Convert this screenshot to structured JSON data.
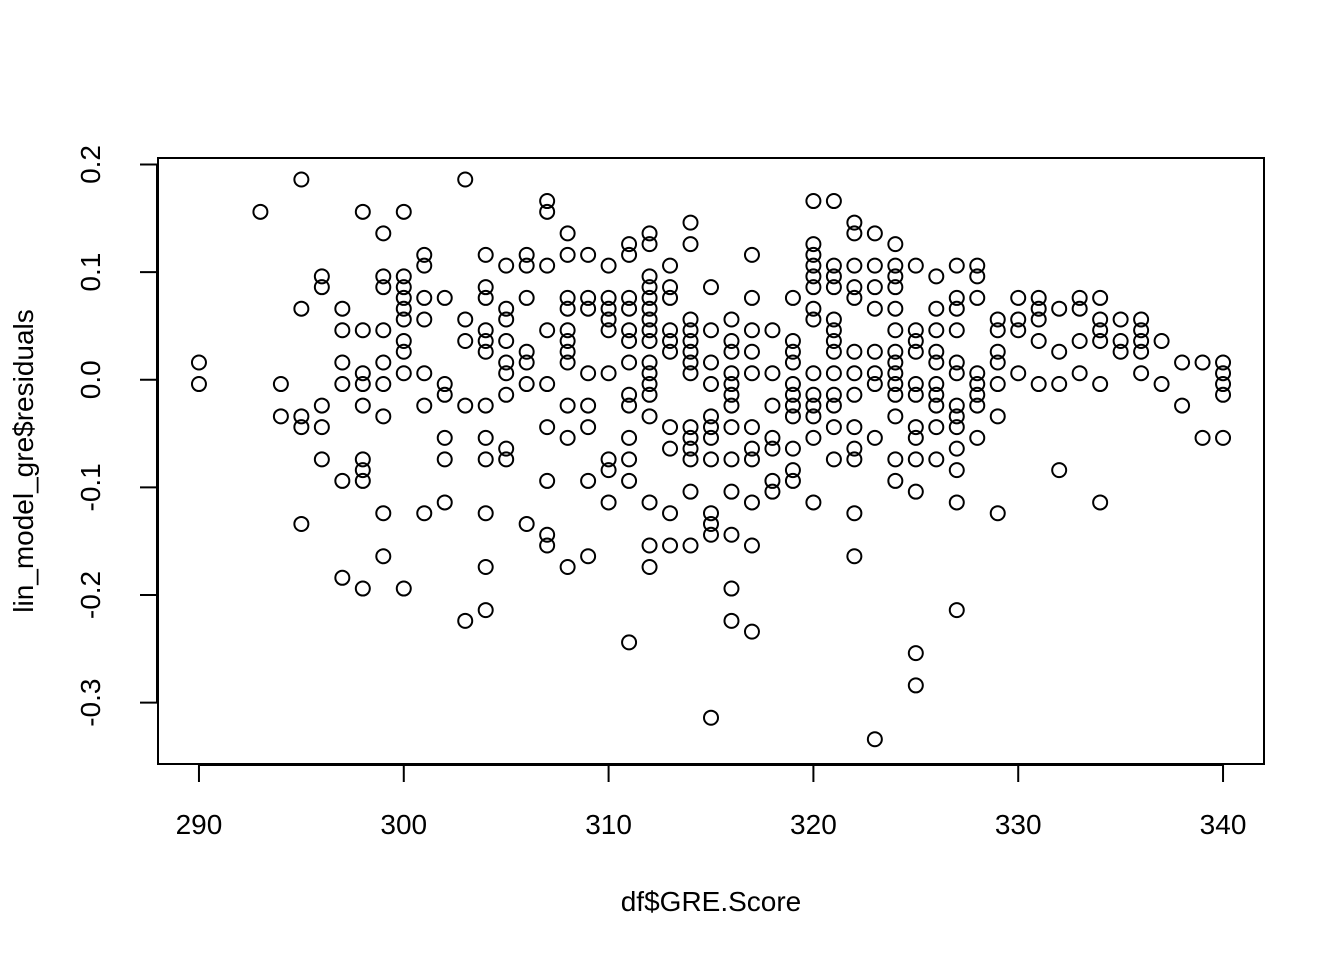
{
  "chart_data": {
    "type": "scatter",
    "xlabel": "df$GRE.Score",
    "ylabel": "lin_model_gre$residuals",
    "xlim": [
      288,
      342
    ],
    "ylim": [
      -0.357,
      0.206
    ],
    "xticks": [
      "290",
      "300",
      "310",
      "320",
      "330",
      "340"
    ],
    "yticks": [
      "-0.3",
      "-0.2",
      "-0.1",
      "0.0",
      "0.1",
      "0.2"
    ],
    "grid": false,
    "marker": "open-circle",
    "color": "#000000",
    "points": [
      [
        290,
        0.016
      ],
      [
        290,
        -0.004
      ],
      [
        293,
        0.156
      ],
      [
        294,
        -0.004
      ],
      [
        294,
        -0.034
      ],
      [
        295,
        0.186
      ],
      [
        295,
        0.066
      ],
      [
        295,
        -0.034
      ],
      [
        295,
        -0.044
      ],
      [
        295,
        -0.134
      ],
      [
        296,
        0.096
      ],
      [
        296,
        0.086
      ],
      [
        296,
        -0.024
      ],
      [
        296,
        -0.044
      ],
      [
        296,
        -0.074
      ],
      [
        297,
        0.066
      ],
      [
        297,
        0.046
      ],
      [
        297,
        0.016
      ],
      [
        297,
        -0.004
      ],
      [
        297,
        -0.094
      ],
      [
        297,
        -0.184
      ],
      [
        298,
        0.156
      ],
      [
        298,
        0.046
      ],
      [
        298,
        0.006
      ],
      [
        298,
        -0.004
      ],
      [
        298,
        -0.024
      ],
      [
        298,
        -0.074
      ],
      [
        298,
        -0.084
      ],
      [
        298,
        -0.094
      ],
      [
        298,
        -0.194
      ],
      [
        299,
        0.136
      ],
      [
        299,
        0.096
      ],
      [
        299,
        0.086
      ],
      [
        299,
        0.046
      ],
      [
        299,
        0.016
      ],
      [
        299,
        -0.004
      ],
      [
        299,
        -0.034
      ],
      [
        299,
        -0.124
      ],
      [
        299,
        -0.164
      ],
      [
        300,
        0.156
      ],
      [
        300,
        0.096
      ],
      [
        300,
        0.086
      ],
      [
        300,
        0.076
      ],
      [
        300,
        0.066
      ],
      [
        300,
        0.056
      ],
      [
        300,
        0.036
      ],
      [
        300,
        0.026
      ],
      [
        300,
        0.006
      ],
      [
        300,
        -0.194
      ],
      [
        301,
        0.116
      ],
      [
        301,
        0.106
      ],
      [
        301,
        0.076
      ],
      [
        301,
        0.056
      ],
      [
        301,
        0.006
      ],
      [
        301,
        -0.024
      ],
      [
        301,
        -0.124
      ],
      [
        302,
        0.076
      ],
      [
        302,
        -0.004
      ],
      [
        302,
        -0.014
      ],
      [
        302,
        -0.054
      ],
      [
        302,
        -0.074
      ],
      [
        302,
        -0.114
      ],
      [
        303,
        0.186
      ],
      [
        303,
        0.056
      ],
      [
        303,
        0.036
      ],
      [
        303,
        -0.024
      ],
      [
        303,
        -0.224
      ],
      [
        304,
        0.116
      ],
      [
        304,
        0.086
      ],
      [
        304,
        0.076
      ],
      [
        304,
        0.046
      ],
      [
        304,
        0.036
      ],
      [
        304,
        0.026
      ],
      [
        304,
        -0.024
      ],
      [
        304,
        -0.054
      ],
      [
        304,
        -0.074
      ],
      [
        304,
        -0.124
      ],
      [
        304,
        -0.174
      ],
      [
        304,
        -0.214
      ],
      [
        305,
        0.106
      ],
      [
        305,
        0.066
      ],
      [
        305,
        0.056
      ],
      [
        305,
        0.036
      ],
      [
        305,
        0.016
      ],
      [
        305,
        0.006
      ],
      [
        305,
        -0.014
      ],
      [
        305,
        -0.064
      ],
      [
        305,
        -0.074
      ],
      [
        306,
        0.116
      ],
      [
        306,
        0.106
      ],
      [
        306,
        0.076
      ],
      [
        306,
        0.026
      ],
      [
        306,
        0.016
      ],
      [
        306,
        -0.004
      ],
      [
        306,
        -0.134
      ],
      [
        307,
        0.166
      ],
      [
        307,
        0.156
      ],
      [
        307,
        0.106
      ],
      [
        307,
        0.046
      ],
      [
        307,
        -0.004
      ],
      [
        307,
        -0.044
      ],
      [
        307,
        -0.094
      ],
      [
        307,
        -0.144
      ],
      [
        307,
        -0.154
      ],
      [
        308,
        0.136
      ],
      [
        308,
        0.116
      ],
      [
        308,
        0.076
      ],
      [
        308,
        0.066
      ],
      [
        308,
        0.046
      ],
      [
        308,
        0.036
      ],
      [
        308,
        0.026
      ],
      [
        308,
        0.016
      ],
      [
        308,
        -0.024
      ],
      [
        308,
        -0.054
      ],
      [
        308,
        -0.174
      ],
      [
        309,
        0.116
      ],
      [
        309,
        0.076
      ],
      [
        309,
        0.066
      ],
      [
        309,
        0.006
      ],
      [
        309,
        -0.024
      ],
      [
        309,
        -0.044
      ],
      [
        309,
        -0.094
      ],
      [
        309,
        -0.164
      ],
      [
        310,
        0.106
      ],
      [
        310,
        0.076
      ],
      [
        310,
        0.066
      ],
      [
        310,
        0.056
      ],
      [
        310,
        0.046
      ],
      [
        310,
        0.006
      ],
      [
        310,
        -0.074
      ],
      [
        310,
        -0.084
      ],
      [
        310,
        -0.114
      ],
      [
        311,
        0.126
      ],
      [
        311,
        0.116
      ],
      [
        311,
        0.076
      ],
      [
        311,
        0.066
      ],
      [
        311,
        0.046
      ],
      [
        311,
        0.036
      ],
      [
        311,
        0.016
      ],
      [
        311,
        -0.014
      ],
      [
        311,
        -0.024
      ],
      [
        311,
        -0.054
      ],
      [
        311,
        -0.074
      ],
      [
        311,
        -0.094
      ],
      [
        311,
        -0.244
      ],
      [
        312,
        0.136
      ],
      [
        312,
        0.126
      ],
      [
        312,
        0.096
      ],
      [
        312,
        0.086
      ],
      [
        312,
        0.076
      ],
      [
        312,
        0.066
      ],
      [
        312,
        0.056
      ],
      [
        312,
        0.046
      ],
      [
        312,
        0.036
      ],
      [
        312,
        0.016
      ],
      [
        312,
        0.006
      ],
      [
        312,
        -0.004
      ],
      [
        312,
        -0.014
      ],
      [
        312,
        -0.034
      ],
      [
        312,
        -0.114
      ],
      [
        312,
        -0.154
      ],
      [
        312,
        -0.174
      ],
      [
        313,
        0.106
      ],
      [
        313,
        0.086
      ],
      [
        313,
        0.076
      ],
      [
        313,
        0.046
      ],
      [
        313,
        0.036
      ],
      [
        313,
        0.026
      ],
      [
        313,
        -0.044
      ],
      [
        313,
        -0.064
      ],
      [
        313,
        -0.124
      ],
      [
        313,
        -0.154
      ],
      [
        314,
        0.146
      ],
      [
        314,
        0.126
      ],
      [
        314,
        0.056
      ],
      [
        314,
        0.046
      ],
      [
        314,
        0.036
      ],
      [
        314,
        0.026
      ],
      [
        314,
        0.016
      ],
      [
        314,
        0.006
      ],
      [
        314,
        -0.044
      ],
      [
        314,
        -0.054
      ],
      [
        314,
        -0.064
      ],
      [
        314,
        -0.074
      ],
      [
        314,
        -0.104
      ],
      [
        314,
        -0.154
      ],
      [
        315,
        0.086
      ],
      [
        315,
        0.046
      ],
      [
        315,
        0.016
      ],
      [
        315,
        -0.004
      ],
      [
        315,
        -0.034
      ],
      [
        315,
        -0.044
      ],
      [
        315,
        -0.054
      ],
      [
        315,
        -0.074
      ],
      [
        315,
        -0.124
      ],
      [
        315,
        -0.134
      ],
      [
        315,
        -0.144
      ],
      [
        315,
        -0.314
      ],
      [
        316,
        0.056
      ],
      [
        316,
        0.036
      ],
      [
        316,
        0.026
      ],
      [
        316,
        0.006
      ],
      [
        316,
        -0.004
      ],
      [
        316,
        -0.014
      ],
      [
        316,
        -0.024
      ],
      [
        316,
        -0.044
      ],
      [
        316,
        -0.074
      ],
      [
        316,
        -0.104
      ],
      [
        316,
        -0.144
      ],
      [
        316,
        -0.194
      ],
      [
        316,
        -0.224
      ],
      [
        317,
        0.116
      ],
      [
        317,
        0.076
      ],
      [
        317,
        0.046
      ],
      [
        317,
        0.026
      ],
      [
        317,
        0.006
      ],
      [
        317,
        -0.044
      ],
      [
        317,
        -0.064
      ],
      [
        317,
        -0.074
      ],
      [
        317,
        -0.114
      ],
      [
        317,
        -0.154
      ],
      [
        317,
        -0.234
      ],
      [
        318,
        0.046
      ],
      [
        318,
        0.006
      ],
      [
        318,
        -0.024
      ],
      [
        318,
        -0.054
      ],
      [
        318,
        -0.064
      ],
      [
        318,
        -0.094
      ],
      [
        318,
        -0.104
      ],
      [
        319,
        0.076
      ],
      [
        319,
        0.036
      ],
      [
        319,
        0.026
      ],
      [
        319,
        0.016
      ],
      [
        319,
        -0.004
      ],
      [
        319,
        -0.014
      ],
      [
        319,
        -0.024
      ],
      [
        319,
        -0.034
      ],
      [
        319,
        -0.064
      ],
      [
        319,
        -0.084
      ],
      [
        319,
        -0.094
      ],
      [
        320,
        0.166
      ],
      [
        320,
        0.126
      ],
      [
        320,
        0.116
      ],
      [
        320,
        0.106
      ],
      [
        320,
        0.096
      ],
      [
        320,
        0.086
      ],
      [
        320,
        0.066
      ],
      [
        320,
        0.056
      ],
      [
        320,
        0.006
      ],
      [
        320,
        -0.014
      ],
      [
        320,
        -0.024
      ],
      [
        320,
        -0.034
      ],
      [
        320,
        -0.054
      ],
      [
        320,
        -0.114
      ],
      [
        321,
        0.166
      ],
      [
        321,
        0.106
      ],
      [
        321,
        0.096
      ],
      [
        321,
        0.086
      ],
      [
        321,
        0.056
      ],
      [
        321,
        0.046
      ],
      [
        321,
        0.036
      ],
      [
        321,
        0.026
      ],
      [
        321,
        0.006
      ],
      [
        321,
        -0.014
      ],
      [
        321,
        -0.024
      ],
      [
        321,
        -0.044
      ],
      [
        321,
        -0.074
      ],
      [
        322,
        0.146
      ],
      [
        322,
        0.136
      ],
      [
        322,
        0.106
      ],
      [
        322,
        0.086
      ],
      [
        322,
        0.076
      ],
      [
        322,
        0.026
      ],
      [
        322,
        0.006
      ],
      [
        322,
        -0.014
      ],
      [
        322,
        -0.044
      ],
      [
        322,
        -0.064
      ],
      [
        322,
        -0.074
      ],
      [
        322,
        -0.124
      ],
      [
        322,
        -0.164
      ],
      [
        323,
        0.136
      ],
      [
        323,
        0.106
      ],
      [
        323,
        0.086
      ],
      [
        323,
        0.066
      ],
      [
        323,
        0.026
      ],
      [
        323,
        0.006
      ],
      [
        323,
        -0.004
      ],
      [
        323,
        -0.054
      ],
      [
        323,
        -0.334
      ],
      [
        324,
        0.126
      ],
      [
        324,
        0.106
      ],
      [
        324,
        0.096
      ],
      [
        324,
        0.086
      ],
      [
        324,
        0.066
      ],
      [
        324,
        0.046
      ],
      [
        324,
        0.026
      ],
      [
        324,
        0.016
      ],
      [
        324,
        0.006
      ],
      [
        324,
        -0.004
      ],
      [
        324,
        -0.014
      ],
      [
        324,
        -0.034
      ],
      [
        324,
        -0.074
      ],
      [
        324,
        -0.094
      ],
      [
        325,
        0.106
      ],
      [
        325,
        0.046
      ],
      [
        325,
        0.036
      ],
      [
        325,
        0.026
      ],
      [
        325,
        -0.004
      ],
      [
        325,
        -0.014
      ],
      [
        325,
        -0.044
      ],
      [
        325,
        -0.054
      ],
      [
        325,
        -0.074
      ],
      [
        325,
        -0.104
      ],
      [
        325,
        -0.254
      ],
      [
        325,
        -0.284
      ],
      [
        326,
        0.096
      ],
      [
        326,
        0.066
      ],
      [
        326,
        0.046
      ],
      [
        326,
        0.026
      ],
      [
        326,
        0.016
      ],
      [
        326,
        -0.004
      ],
      [
        326,
        -0.014
      ],
      [
        326,
        -0.024
      ],
      [
        326,
        -0.044
      ],
      [
        326,
        -0.074
      ],
      [
        327,
        0.106
      ],
      [
        327,
        0.076
      ],
      [
        327,
        0.066
      ],
      [
        327,
        0.046
      ],
      [
        327,
        0.016
      ],
      [
        327,
        0.006
      ],
      [
        327,
        -0.024
      ],
      [
        327,
        -0.034
      ],
      [
        327,
        -0.044
      ],
      [
        327,
        -0.064
      ],
      [
        327,
        -0.084
      ],
      [
        327,
        -0.114
      ],
      [
        327,
        -0.214
      ],
      [
        328,
        0.106
      ],
      [
        328,
        0.096
      ],
      [
        328,
        0.076
      ],
      [
        328,
        0.006
      ],
      [
        328,
        -0.004
      ],
      [
        328,
        -0.014
      ],
      [
        328,
        -0.024
      ],
      [
        328,
        -0.054
      ],
      [
        329,
        0.056
      ],
      [
        329,
        0.046
      ],
      [
        329,
        0.026
      ],
      [
        329,
        0.016
      ],
      [
        329,
        -0.004
      ],
      [
        329,
        -0.034
      ],
      [
        329,
        -0.124
      ],
      [
        330,
        0.076
      ],
      [
        330,
        0.056
      ],
      [
        330,
        0.046
      ],
      [
        330,
        0.006
      ],
      [
        331,
        0.076
      ],
      [
        331,
        0.066
      ],
      [
        331,
        0.056
      ],
      [
        331,
        0.036
      ],
      [
        331,
        -0.004
      ],
      [
        332,
        0.066
      ],
      [
        332,
        0.026
      ],
      [
        332,
        -0.004
      ],
      [
        332,
        -0.084
      ],
      [
        333,
        0.076
      ],
      [
        333,
        0.066
      ],
      [
        333,
        0.036
      ],
      [
        333,
        0.006
      ],
      [
        334,
        0.076
      ],
      [
        334,
        0.056
      ],
      [
        334,
        0.046
      ],
      [
        334,
        0.036
      ],
      [
        334,
        -0.004
      ],
      [
        334,
        -0.114
      ],
      [
        335,
        0.056
      ],
      [
        335,
        0.036
      ],
      [
        335,
        0.026
      ],
      [
        336,
        0.056
      ],
      [
        336,
        0.046
      ],
      [
        336,
        0.036
      ],
      [
        336,
        0.026
      ],
      [
        336,
        0.006
      ],
      [
        337,
        0.036
      ],
      [
        337,
        -0.004
      ],
      [
        338,
        0.016
      ],
      [
        338,
        -0.024
      ],
      [
        339,
        0.016
      ],
      [
        339,
        -0.054
      ],
      [
        340,
        0.016
      ],
      [
        340,
        0.006
      ],
      [
        340,
        -0.004
      ],
      [
        340,
        -0.014
      ],
      [
        340,
        -0.054
      ]
    ]
  }
}
